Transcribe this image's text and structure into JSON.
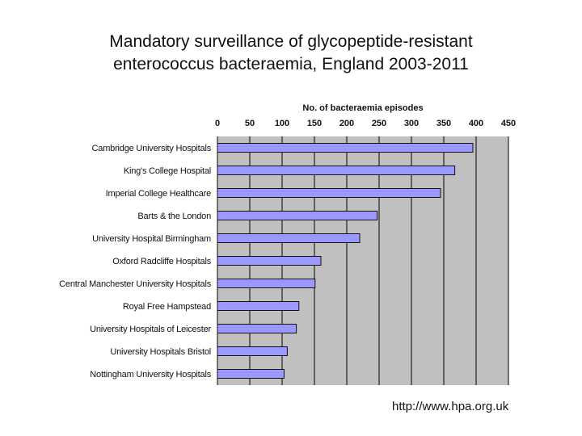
{
  "slide": {
    "title_line1": "Mandatory surveillance of glycopeptide-resistant",
    "title_line2": "enterococcus bacteraemia, England 2003-2011",
    "source": "http://www.hpa.org.uk"
  },
  "chart_data": {
    "type": "bar",
    "orientation": "horizontal",
    "title": "No. of bacteraemia episodes",
    "xlabel": "No. of bacteraemia episodes",
    "ylabel": "",
    "xlim": [
      0,
      450
    ],
    "xticks": [
      "0",
      "50",
      "100",
      "150",
      "200",
      "250",
      "300",
      "350",
      "400",
      "450"
    ],
    "grid": true,
    "axis_position": "top",
    "categories": [
      "Cambridge University Hospitals",
      "King's College Hospital",
      "Imperial College Healthcare",
      "Barts & the London",
      "University Hospital Birmingham",
      "Oxford Radcliffe Hospitals",
      "Central Manchester University Hospitals",
      "Royal Free Hampstead",
      "University Hospitals of Leicester",
      "University Hospitals Bristol",
      "Nottingham University Hospitals"
    ],
    "values": [
      395,
      367,
      345,
      247,
      220,
      160,
      151,
      126,
      122,
      108,
      103
    ],
    "colors": {
      "bar_fill": "#9999ff",
      "bar_stroke": "#111111",
      "plot_bg": "#c0c0c0",
      "grid": "#000000"
    }
  }
}
